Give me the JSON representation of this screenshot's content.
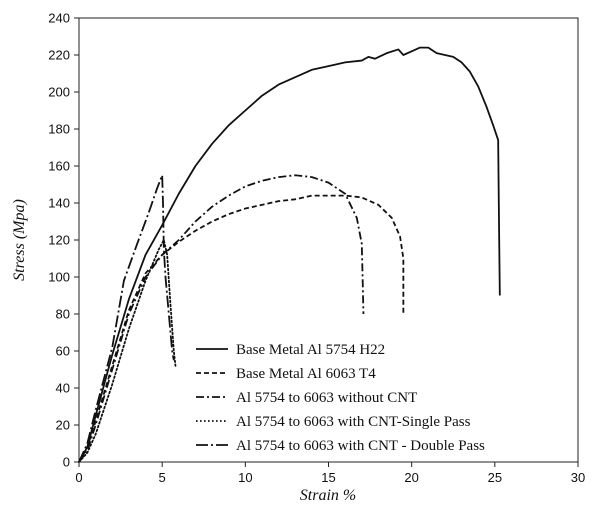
{
  "chart_data": {
    "type": "line",
    "title": "",
    "xlabel": "Strain %",
    "ylabel": "Stress (Mpa)",
    "xlim": [
      0,
      30
    ],
    "ylim": [
      0,
      240
    ],
    "xticks": [
      0,
      5,
      10,
      15,
      20,
      25,
      30
    ],
    "yticks": [
      0,
      20,
      40,
      60,
      80,
      100,
      120,
      140,
      160,
      180,
      200,
      220,
      240
    ],
    "grid": false,
    "legend_position": "bottom-right",
    "series": [
      {
        "name": "Base Metal Al 5754 H22",
        "dash": "solid",
        "points": [
          [
            0,
            0
          ],
          [
            0.5,
            8
          ],
          [
            1,
            25
          ],
          [
            2,
            58
          ],
          [
            3,
            88
          ],
          [
            4,
            112
          ],
          [
            5,
            128
          ],
          [
            6,
            145
          ],
          [
            7,
            160
          ],
          [
            8,
            172
          ],
          [
            9,
            182
          ],
          [
            10,
            190
          ],
          [
            11,
            198
          ],
          [
            12,
            204
          ],
          [
            13,
            208
          ],
          [
            14,
            212
          ],
          [
            15,
            214
          ],
          [
            16,
            216
          ],
          [
            17,
            217
          ],
          [
            17.4,
            219
          ],
          [
            17.8,
            218
          ],
          [
            18.5,
            221
          ],
          [
            19.2,
            223
          ],
          [
            19.5,
            220
          ],
          [
            20,
            222
          ],
          [
            20.5,
            224
          ],
          [
            21,
            224
          ],
          [
            21.5,
            221
          ],
          [
            22,
            220
          ],
          [
            22.5,
            219
          ],
          [
            23,
            216
          ],
          [
            23.5,
            211
          ],
          [
            24,
            203
          ],
          [
            24.5,
            192
          ],
          [
            24.9,
            182
          ],
          [
            25.2,
            174
          ],
          [
            25.25,
            130
          ],
          [
            25.3,
            90
          ]
        ]
      },
      {
        "name": "Base Metal Al 6063 T4",
        "dash": "dashed",
        "points": [
          [
            0,
            0
          ],
          [
            0.5,
            8
          ],
          [
            1,
            22
          ],
          [
            2,
            52
          ],
          [
            3,
            82
          ],
          [
            4,
            102
          ],
          [
            5,
            112
          ],
          [
            6,
            119
          ],
          [
            7,
            125
          ],
          [
            8,
            130
          ],
          [
            9,
            134
          ],
          [
            10,
            137
          ],
          [
            11,
            139
          ],
          [
            12,
            141
          ],
          [
            13,
            142
          ],
          [
            14,
            144
          ],
          [
            15,
            144
          ],
          [
            16,
            144
          ],
          [
            17,
            143
          ],
          [
            18,
            139
          ],
          [
            18.8,
            132
          ],
          [
            19.3,
            122
          ],
          [
            19.5,
            110
          ],
          [
            19.5,
            95
          ],
          [
            19.5,
            80
          ]
        ]
      },
      {
        "name": "Al 5754 to 6063 without CNT",
        "dash": "dashdot",
        "points": [
          [
            0,
            0
          ],
          [
            0.5,
            6
          ],
          [
            1,
            20
          ],
          [
            2,
            50
          ],
          [
            3,
            80
          ],
          [
            4,
            100
          ],
          [
            5,
            112
          ],
          [
            6,
            120
          ],
          [
            7,
            130
          ],
          [
            8,
            138
          ],
          [
            9,
            144
          ],
          [
            10,
            149
          ],
          [
            11,
            152
          ],
          [
            12,
            154
          ],
          [
            13,
            155
          ],
          [
            14,
            154
          ],
          [
            15,
            151
          ],
          [
            16,
            145
          ],
          [
            16.7,
            132
          ],
          [
            17,
            118
          ],
          [
            17.05,
            100
          ],
          [
            17.1,
            80
          ]
        ]
      },
      {
        "name": "Al 5754 to 6063 with CNT-Single Pass",
        "dash": "dotted",
        "points": [
          [
            0,
            0
          ],
          [
            0.5,
            5
          ],
          [
            1,
            15
          ],
          [
            2,
            42
          ],
          [
            3,
            72
          ],
          [
            4,
            98
          ],
          [
            4.8,
            115
          ],
          [
            5.1,
            120
          ],
          [
            5.3,
            112
          ],
          [
            5.5,
            85
          ],
          [
            5.7,
            60
          ],
          [
            5.8,
            52
          ]
        ]
      },
      {
        "name": "Al 5754 to 6063 with CNT - Double Pass",
        "dash": "longdashdot",
        "points": [
          [
            0,
            0
          ],
          [
            0.5,
            10
          ],
          [
            1,
            28
          ],
          [
            2,
            62
          ],
          [
            2.7,
            98
          ],
          [
            3.5,
            118
          ],
          [
            4.2,
            135
          ],
          [
            4.7,
            148
          ],
          [
            5,
            155
          ],
          [
            5.05,
            140
          ],
          [
            5.1,
            115
          ],
          [
            5.2,
            100
          ],
          [
            5.4,
            80
          ],
          [
            5.6,
            60
          ],
          [
            5.7,
            55
          ]
        ]
      }
    ]
  }
}
